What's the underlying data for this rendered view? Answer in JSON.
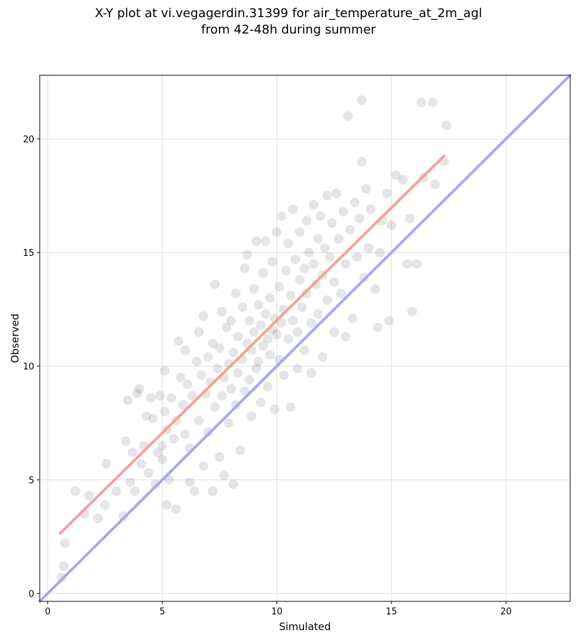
{
  "title": {
    "line1": "X-Y plot at vi.vegagerdin.31399 for air_temperature_at_2m_agl",
    "line2": "from 42-48h during summer"
  },
  "chart_data": {
    "type": "scatter",
    "xlabel": "Simulated",
    "ylabel": "Observed",
    "xlim": [
      -0.35,
      22.8
    ],
    "ylim": [
      -0.35,
      22.8
    ],
    "xticks": [
      0,
      5,
      10,
      15,
      20
    ],
    "yticks": [
      0,
      5,
      10,
      15,
      20
    ],
    "xtick_labels": [
      "0",
      "5",
      "10",
      "15",
      "20"
    ],
    "ytick_labels": [
      "0",
      "5",
      "10",
      "15",
      "20"
    ],
    "grid": true,
    "point_color": "#000000",
    "point_alpha": 0.1,
    "series": [
      {
        "kind": "points",
        "points": [
          [
            0.6,
            0.7
          ],
          [
            0.7,
            1.2
          ],
          [
            0.75,
            2.2
          ],
          [
            1.2,
            4.5
          ],
          [
            1.6,
            3.5
          ],
          [
            1.8,
            4.3
          ],
          [
            2.2,
            3.3
          ],
          [
            2.5,
            3.9
          ],
          [
            2.55,
            5.7
          ],
          [
            3.0,
            4.5
          ],
          [
            3.3,
            3.4
          ],
          [
            3.4,
            6.7
          ],
          [
            3.5,
            8.5
          ],
          [
            3.6,
            4.9
          ],
          [
            3.7,
            6.2
          ],
          [
            3.8,
            4.5
          ],
          [
            3.9,
            8.8
          ],
          [
            4.0,
            9.0
          ],
          [
            4.1,
            5.7
          ],
          [
            4.2,
            6.5
          ],
          [
            4.3,
            7.8
          ],
          [
            4.4,
            5.3
          ],
          [
            4.5,
            8.6
          ],
          [
            4.6,
            7.7
          ],
          [
            4.7,
            4.8
          ],
          [
            4.8,
            6.2
          ],
          [
            4.9,
            8.7
          ],
          [
            5.0,
            5.9
          ],
          [
            5.0,
            6.5
          ],
          [
            5.1,
            9.8
          ],
          [
            5.1,
            8.0
          ],
          [
            5.2,
            3.9
          ],
          [
            5.2,
            7.2
          ],
          [
            5.3,
            5.0
          ],
          [
            5.4,
            8.6
          ],
          [
            5.5,
            6.8
          ],
          [
            5.6,
            3.7
          ],
          [
            5.6,
            7.6
          ],
          [
            5.7,
            11.1
          ],
          [
            5.8,
            9.5
          ],
          [
            5.9,
            8.3
          ],
          [
            6.0,
            10.7
          ],
          [
            6.0,
            7.0
          ],
          [
            6.1,
            9.2
          ],
          [
            6.2,
            6.4
          ],
          [
            6.2,
            4.9
          ],
          [
            6.3,
            8.7
          ],
          [
            6.4,
            4.5
          ],
          [
            6.5,
            10.2
          ],
          [
            6.6,
            11.5
          ],
          [
            6.6,
            7.6
          ],
          [
            6.7,
            9.6
          ],
          [
            6.8,
            5.6
          ],
          [
            6.8,
            12.2
          ],
          [
            6.9,
            8.8
          ],
          [
            7.0,
            10.4
          ],
          [
            7.0,
            7.1
          ],
          [
            7.1,
            9.3
          ],
          [
            7.2,
            4.5
          ],
          [
            7.2,
            11.0
          ],
          [
            7.3,
            13.6
          ],
          [
            7.3,
            8.2
          ],
          [
            7.4,
            9.9
          ],
          [
            7.5,
            6.0
          ],
          [
            7.5,
            10.8
          ],
          [
            7.6,
            12.4
          ],
          [
            7.6,
            8.7
          ],
          [
            7.7,
            9.5
          ],
          [
            7.7,
            5.2
          ],
          [
            7.8,
            11.7
          ],
          [
            7.9,
            10.1
          ],
          [
            7.9,
            7.5
          ],
          [
            8.0,
            9.0
          ],
          [
            8.0,
            12.0
          ],
          [
            8.1,
            10.6
          ],
          [
            8.1,
            4.8
          ],
          [
            8.2,
            8.3
          ],
          [
            8.2,
            13.2
          ],
          [
            8.3,
            11.3
          ],
          [
            8.3,
            9.7
          ],
          [
            8.4,
            6.3
          ],
          [
            8.5,
            10.3
          ],
          [
            8.5,
            12.6
          ],
          [
            8.6,
            14.3
          ],
          [
            8.6,
            8.9
          ],
          [
            8.7,
            11.0
          ],
          [
            8.7,
            14.9
          ],
          [
            8.8,
            9.4
          ],
          [
            8.8,
            12.0
          ],
          [
            8.9,
            10.7
          ],
          [
            8.9,
            7.8
          ],
          [
            9.0,
            13.4
          ],
          [
            9.0,
            11.5
          ],
          [
            9.1,
            9.9
          ],
          [
            9.1,
            15.5
          ],
          [
            9.2,
            12.7
          ],
          [
            9.2,
            10.2
          ],
          [
            9.3,
            11.8
          ],
          [
            9.3,
            8.4
          ],
          [
            9.4,
            14.1
          ],
          [
            9.4,
            10.9
          ],
          [
            9.5,
            12.3
          ],
          [
            9.5,
            15.5
          ],
          [
            9.6,
            11.2
          ],
          [
            9.6,
            9.1
          ],
          [
            9.7,
            13.0
          ],
          [
            9.7,
            10.5
          ],
          [
            9.8,
            11.6
          ],
          [
            9.8,
            14.6
          ],
          [
            9.9,
            12.1
          ],
          [
            9.9,
            8.1
          ],
          [
            10.0,
            11.4
          ],
          [
            10.0,
            15.9
          ],
          [
            10.1,
            10.3
          ],
          [
            10.1,
            13.5
          ],
          [
            10.2,
            11.9
          ],
          [
            10.2,
            16.6
          ],
          [
            10.3,
            12.5
          ],
          [
            10.3,
            9.6
          ],
          [
            10.4,
            14.2
          ],
          [
            10.5,
            11.2
          ],
          [
            10.5,
            15.4
          ],
          [
            10.6,
            13.1
          ],
          [
            10.6,
            8.2
          ],
          [
            10.7,
            12.0
          ],
          [
            10.7,
            16.9
          ],
          [
            10.8,
            14.7
          ],
          [
            10.9,
            11.5
          ],
          [
            10.9,
            9.9
          ],
          [
            11.0,
            13.8
          ],
          [
            11.0,
            15.9
          ],
          [
            11.1,
            12.6
          ],
          [
            11.2,
            14.3
          ],
          [
            11.2,
            10.7
          ],
          [
            11.3,
            16.4
          ],
          [
            11.3,
            13.2
          ],
          [
            11.4,
            15.0
          ],
          [
            11.5,
            11.9
          ],
          [
            11.5,
            9.7
          ],
          [
            11.6,
            14.5
          ],
          [
            11.6,
            17.1
          ],
          [
            11.7,
            13.6
          ],
          [
            11.8,
            15.6
          ],
          [
            11.8,
            12.3
          ],
          [
            11.9,
            16.6
          ],
          [
            12.0,
            14.0
          ],
          [
            12.0,
            10.4
          ],
          [
            12.1,
            15.2
          ],
          [
            12.2,
            17.5
          ],
          [
            12.2,
            12.9
          ],
          [
            12.3,
            14.8
          ],
          [
            12.4,
            16.3
          ],
          [
            12.5,
            11.5
          ],
          [
            12.5,
            13.7
          ],
          [
            12.6,
            17.6
          ],
          [
            12.7,
            15.6
          ],
          [
            12.8,
            13.2
          ],
          [
            12.9,
            16.8
          ],
          [
            13.0,
            14.5
          ],
          [
            13.0,
            11.3
          ],
          [
            13.1,
            21.0
          ],
          [
            13.2,
            16.0
          ],
          [
            13.3,
            12.1
          ],
          [
            13.4,
            17.2
          ],
          [
            13.5,
            14.8
          ],
          [
            13.6,
            16.5
          ],
          [
            13.7,
            21.7
          ],
          [
            13.7,
            19.0
          ],
          [
            13.8,
            13.9
          ],
          [
            13.9,
            17.8
          ],
          [
            14.0,
            15.2
          ],
          [
            14.1,
            16.9
          ],
          [
            14.3,
            13.4
          ],
          [
            14.4,
            11.7
          ],
          [
            14.5,
            15.0
          ],
          [
            14.6,
            16.4
          ],
          [
            14.8,
            17.6
          ],
          [
            14.9,
            12.0
          ],
          [
            15.0,
            16.2
          ],
          [
            15.2,
            18.4
          ],
          [
            15.5,
            18.2
          ],
          [
            15.7,
            14.5
          ],
          [
            15.8,
            16.5
          ],
          [
            15.9,
            12.4
          ],
          [
            16.1,
            14.5
          ],
          [
            16.3,
            21.6
          ],
          [
            16.4,
            18.3
          ],
          [
            16.8,
            21.6
          ],
          [
            16.9,
            18.0
          ],
          [
            17.3,
            19.0
          ],
          [
            17.4,
            20.6
          ]
        ]
      },
      {
        "kind": "line",
        "color": "#f4a0a0",
        "x": [
          0.55,
          17.3
        ],
        "y": [
          2.65,
          19.25
        ]
      },
      {
        "kind": "line",
        "color": "#a8a8f0",
        "x": [
          -0.35,
          22.8
        ],
        "y": [
          -0.35,
          22.8
        ]
      }
    ]
  }
}
